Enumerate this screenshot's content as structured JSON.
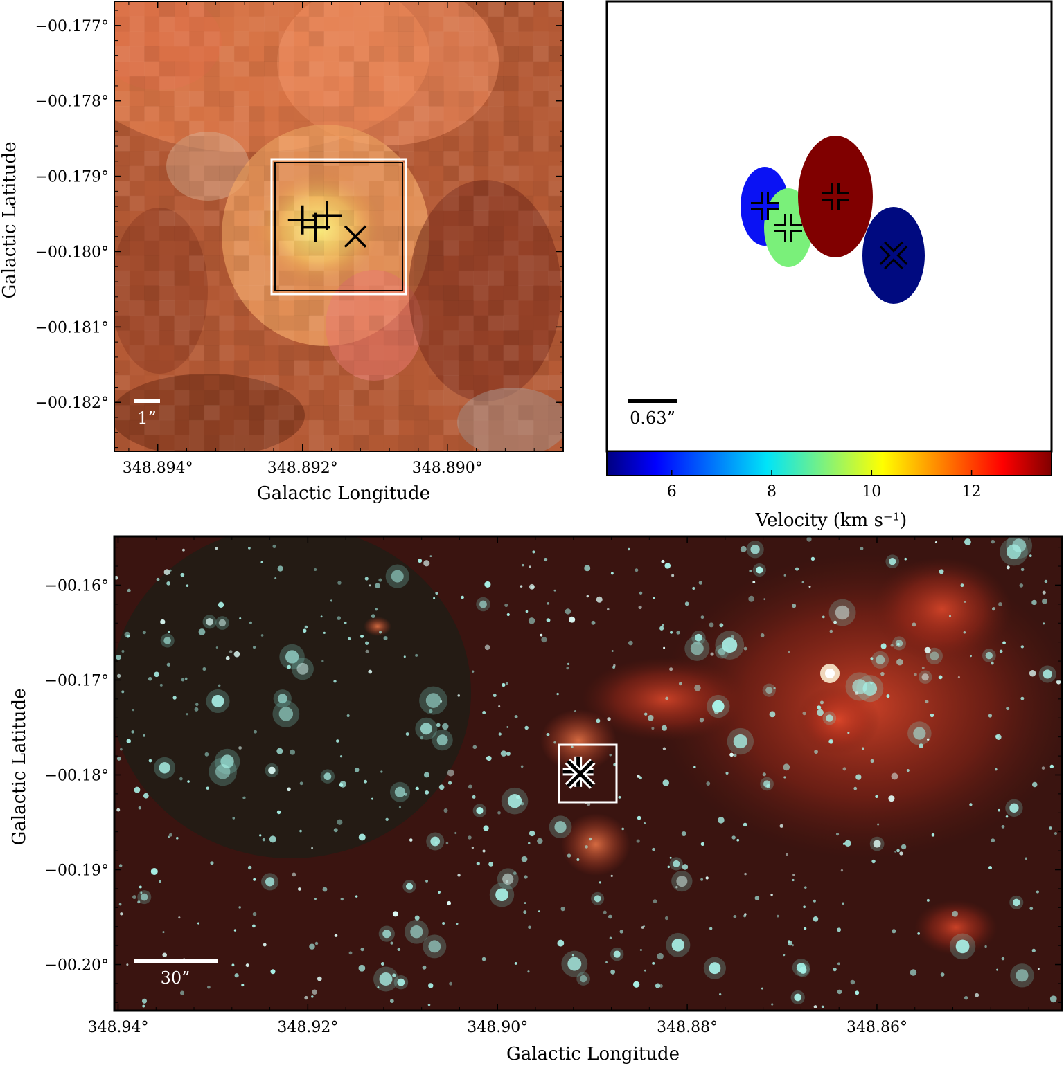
{
  "chart_data": [
    {
      "type": "image",
      "panel": "top-left",
      "xlabel": "Galactic Longitude",
      "ylabel": "Galactic Latitude",
      "xlim": [
        348.8946,
        348.8884
      ],
      "ylim": [
        -0.18265,
        -0.17668
      ],
      "xticks": [
        348.894,
        348.892,
        348.89
      ],
      "xtick_labels": [
        "348.894°",
        "348.892°",
        "348.890°"
      ],
      "yticks": [
        -0.177,
        -0.178,
        -0.179,
        -0.18,
        -0.181,
        -0.182
      ],
      "ytick_labels": [
        "−00.177°",
        "−00.178°",
        "−00.179°",
        "−00.180°",
        "−00.181°",
        "−00.182°"
      ],
      "scalebar_label": "1”",
      "box": {
        "l": [
          348.8924,
          348.8906
        ],
        "b": [
          -0.17935,
          -0.18052
        ]
      },
      "markers": [
        {
          "marker": "plus",
          "l": 348.892,
          "b": -0.17958
        },
        {
          "marker": "plus",
          "l": 348.89182,
          "b": -0.17968
        },
        {
          "marker": "plus",
          "l": 348.89166,
          "b": -0.17952
        },
        {
          "marker": "cross",
          "l": 348.89127,
          "b": -0.1798
        }
      ]
    },
    {
      "type": "scatter",
      "panel": "top-right",
      "scalebar_label": "0.63”",
      "colorbar": {
        "label": "Velocity (km s⁻¹)",
        "range": [
          4.7,
          13.6
        ],
        "ticks": [
          6,
          8,
          10,
          12
        ],
        "tick_labels": [
          "6",
          "8",
          "10",
          "12"
        ]
      },
      "sources": [
        {
          "marker": "plus",
          "velocity": 5.2,
          "color": "#0a12f4"
        },
        {
          "marker": "plus",
          "velocity": 8.6,
          "color": "#7af07a"
        },
        {
          "marker": "plus",
          "velocity": 13.5,
          "color": "#800000"
        },
        {
          "marker": "cross",
          "velocity": 4.8,
          "color": "#000a80"
        }
      ]
    },
    {
      "type": "image",
      "panel": "bottom",
      "xlabel": "Galactic Longitude",
      "ylabel": "Galactic Latitude",
      "xlim": [
        348.9404,
        348.8405
      ],
      "ylim": [
        -0.20485,
        -0.15486
      ],
      "xticks": [
        348.94,
        348.92,
        348.9,
        348.88,
        348.86
      ],
      "xtick_labels": [
        "348.94°",
        "348.92°",
        "348.90°",
        "348.88°",
        "348.86°"
      ],
      "yticks": [
        -0.16,
        -0.17,
        -0.18,
        -0.19,
        -0.2
      ],
      "ytick_labels": [
        "−00.16°",
        "−00.17°",
        "−00.18°",
        "−00.19°",
        "−00.20°"
      ],
      "scalebar_label": "30”",
      "box": {
        "l": [
          348.8946,
          348.8884
        ],
        "b": [
          -0.17668,
          -0.18265
        ]
      },
      "marker_position": {
        "l": 348.8915,
        "b": -0.17966
      }
    }
  ],
  "colors": {
    "top_left_background": "#b55a35",
    "top_left_hotspot": "#f7e07a",
    "bottom_background": "#3a1410",
    "nebula": "#c8321e",
    "stars": "#a8f0e6",
    "box_stroke": "#ffffff"
  }
}
